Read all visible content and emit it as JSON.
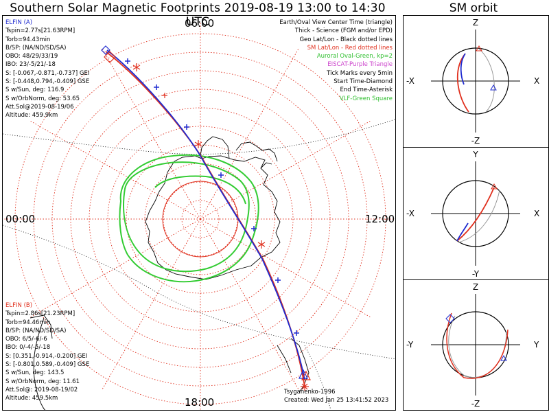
{
  "title": "Southern Solar Magnetic Footprints 2019-08-19 13:00 to 14:30 UTC",
  "sm_title": "SM orbit",
  "polar_plot": {
    "hour_labels": {
      "top": "06:00",
      "left": "00:00",
      "right": "12:00",
      "bottom": "18:00"
    },
    "colors": {
      "elfin_a": "#1f2bd0",
      "elfin_b": "#e0301e",
      "oval": "#33cc33",
      "grid": "#e0301e",
      "coast": "#000000"
    }
  },
  "elfin_a": {
    "lines": [
      "ELFIN (A)",
      "Tspin=2.77s[21.63RPM]",
      "Torb=94.43min",
      "B/SP: (NA/ND/SD/SA)",
      "OBO: 48/29/33/19",
      "IBO: 23/-5/21/-18",
      "S: [-0.067,-0.871,-0.737] GEI",
      "S: [-0.448,0.794,-0.409] GSE",
      "S w/Sun, deg: 116.9",
      "S w/OrbNorm, deg: 53.65",
      "Att.Sol@2019-08-19/06",
      "Altitude: 459.9km"
    ]
  },
  "elfin_b": {
    "lines": [
      "ELFIN (B)",
      "Tspin=2.86s[21.23RPM]",
      "Torb=94.46min",
      "B/SP: (NA/ND/SD/SA)",
      "OBO: 6/5/-6/-6",
      "IBO: 0/-4/-5/-18",
      "S: [0.351,-0.914,-0.200] GEI",
      "S: [-0.801,0.589,-0.409] GSE",
      "S w/Sun, deg: 143.5",
      "S w/OrbNorm, deg: 11.61",
      "Att.Sol@: 2019-08-19/02",
      "Altitude: 459.5km"
    ]
  },
  "legend": {
    "lines": [
      "Earth/Oval View Center Time (triangle)",
      "Thick - Science (FGM and/or EPD)",
      "Geo Lat/Lon - Black dotted lines",
      "SM Lat/Lon - Red dotted lines",
      "Auroral Oval-Green, kp=2",
      "EISCAT-Purple Triangle",
      "Tick Marks every 5min",
      "Start Time-Diamond",
      "End Time-Asterisk",
      "VLF-Green Square"
    ]
  },
  "credits": {
    "author": "Tsyganenko-1996",
    "created": "Created: Wed Jan 25 13:41:52 2023"
  },
  "sm_panels": [
    {
      "top": "Z",
      "bottom": "-Z",
      "left": "-X",
      "right": "X"
    },
    {
      "top": "Y",
      "bottom": "-Y",
      "left": "-X",
      "right": "X"
    },
    {
      "top": "Z",
      "bottom": "-Z",
      "left": "-Y",
      "right": "Y"
    }
  ],
  "chart_data": {
    "type": "polar-map",
    "hemisphere": "southern",
    "time_range": [
      "2019-08-19 13:00",
      "2019-08-19 14:30"
    ],
    "mlt_labels": [
      "00:00",
      "06:00",
      "12:00",
      "18:00"
    ],
    "series": [
      {
        "name": "ELFIN (A)",
        "color": "#1f2bd0"
      },
      {
        "name": "ELFIN (B)",
        "color": "#e0301e"
      }
    ]
  }
}
